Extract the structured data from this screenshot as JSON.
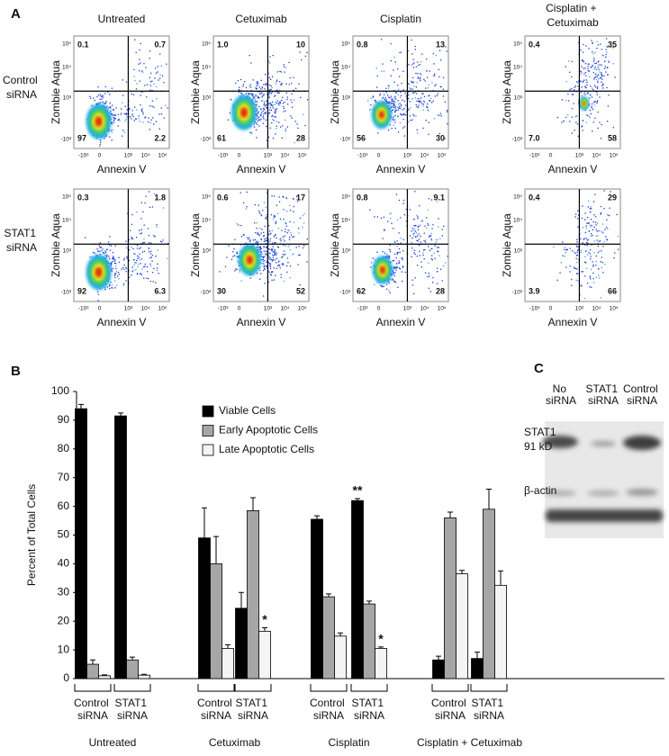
{
  "panel_a": {
    "label": "A",
    "columns": [
      "Untreated",
      "Cetuximab",
      "Cisplatin",
      "Cisplatin + Cetuximab"
    ],
    "rows": [
      "Control siRNA",
      "STAT1 siRNA"
    ],
    "x_label": "Annexin V",
    "y_label": "Zombie Aqua",
    "x_ticks": [
      "-10³",
      "0",
      "10³",
      "10⁴",
      "10⁵"
    ],
    "y_ticks": [
      "10⁵",
      "10⁴",
      "10³",
      "-10³"
    ],
    "plots": [
      [
        {
          "ul": "0.1",
          "ur": "0.7",
          "ll": "97",
          "lr": "2.2"
        },
        {
          "ul": "1.0",
          "ur": "10",
          "ll": "61",
          "lr": "28"
        },
        {
          "ul": "0.8",
          "ur": "13",
          "ll": "56",
          "lr": "30"
        },
        {
          "ul": "0.4",
          "ur": "35",
          "ll": "7.0",
          "lr": "58"
        }
      ],
      [
        {
          "ul": "0.3",
          "ur": "1.8",
          "ll": "92",
          "lr": "6.3"
        },
        {
          "ul": "0.6",
          "ur": "17",
          "ll": "30",
          "lr": "52"
        },
        {
          "ul": "0.8",
          "ur": "9.1",
          "ll": "62",
          "lr": "28"
        },
        {
          "ul": "0.4",
          "ur": "29",
          "ll": "3.9",
          "lr": "66"
        }
      ]
    ]
  },
  "chart_data": {
    "type": "bar",
    "label": "B",
    "y_label": "Percent of Total Cells",
    "ylim": [
      0,
      100
    ],
    "yticks": [
      0,
      10,
      20,
      30,
      40,
      50,
      60,
      70,
      80,
      90,
      100
    ],
    "categories": [
      "Control siRNA",
      "STAT1 siRNA",
      "Control siRNA",
      "STAT1 siRNA",
      "Control siRNA",
      "STAT1 siRNA",
      "Control siRNA",
      "STAT1 siRNA"
    ],
    "groups": [
      "Untreated",
      "Cetuximab",
      "Cisplatin",
      "Cisplatin + Cetuximab"
    ],
    "series": [
      {
        "name": "Viable Cells",
        "color": "#000000",
        "values": [
          94,
          91.5,
          49,
          24.5,
          55.5,
          62,
          6.5,
          7
        ],
        "errors": [
          1.5,
          1,
          10.5,
          5.5,
          1.2,
          0.7,
          1.3,
          2.2
        ],
        "significance": [
          null,
          null,
          null,
          null,
          null,
          "**",
          null,
          null
        ]
      },
      {
        "name": "Early Apoptotic Cells",
        "color": "#a6a6a6",
        "values": [
          5,
          6.5,
          40,
          58.5,
          28.5,
          26,
          56,
          59
        ],
        "errors": [
          1.5,
          1,
          9.5,
          4.5,
          1,
          1,
          2,
          7
        ],
        "significance": [
          null,
          null,
          null,
          null,
          null,
          null,
          null,
          null
        ]
      },
      {
        "name": "Late Apoptotic Cells",
        "color": "#f4f4f4",
        "values": [
          1,
          1.2,
          10.5,
          16.5,
          14.8,
          10.5,
          36.5,
          32.5
        ],
        "errors": [
          0.3,
          0.3,
          1.3,
          1.2,
          1.1,
          0.5,
          1.2,
          5
        ],
        "significance": [
          null,
          null,
          null,
          "*",
          null,
          "*",
          null,
          null
        ]
      }
    ]
  },
  "panel_c": {
    "label": "C",
    "columns": [
      "No siRNA",
      "STAT1 siRNA",
      "Control siRNA"
    ],
    "rows": [
      "STAT1 91 kD",
      "β-actin"
    ]
  }
}
